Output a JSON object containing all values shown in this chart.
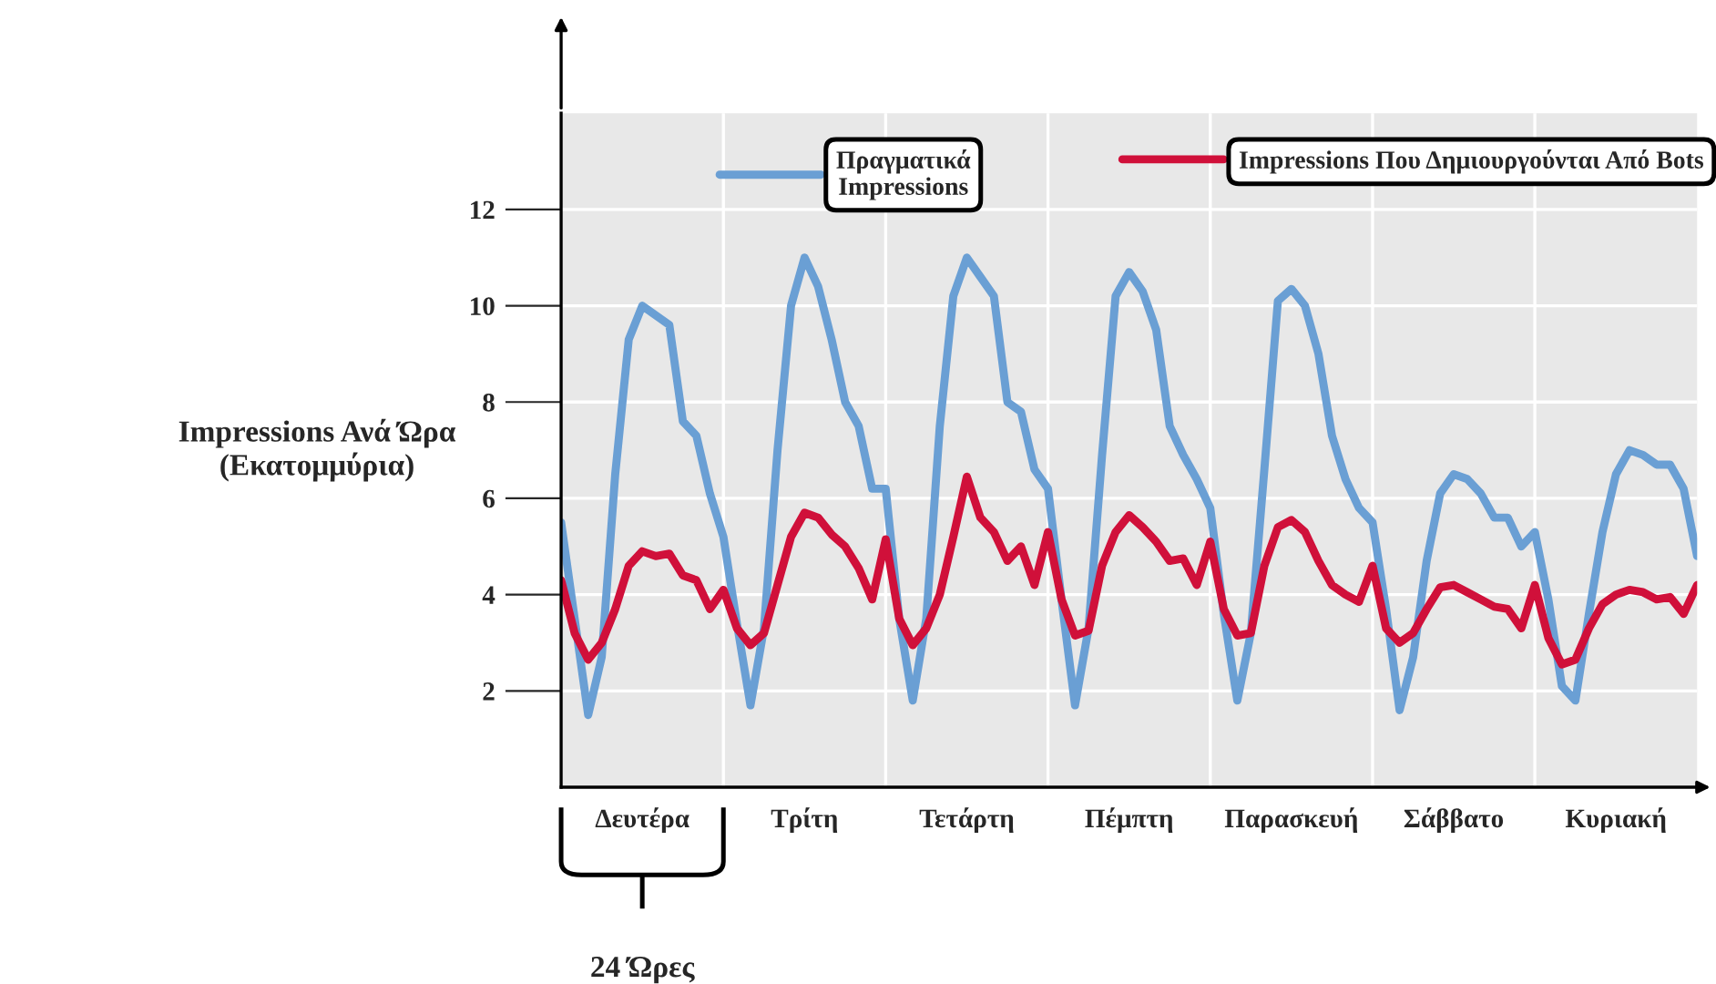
{
  "chart_data": {
    "type": "line",
    "ylabel": "Impressions Ανά Ώρα\n(Εκατομμύρια)",
    "ylim": [
      0,
      14
    ],
    "categories": [
      null,
      null,
      null,
      null,
      null,
      null,
      "Δευτέρα",
      null,
      null,
      null,
      null,
      null,
      null,
      null,
      null,
      null,
      null,
      null,
      "Τρίτη",
      null,
      null,
      null,
      null,
      null,
      null,
      null,
      null,
      null,
      null,
      null,
      "Τετάρτη",
      null,
      null,
      null,
      null,
      null,
      null,
      null,
      null,
      null,
      null,
      null,
      "Πέμπτη",
      null,
      null,
      null,
      null,
      null,
      null,
      null,
      null,
      null,
      null,
      null,
      "Παρασκευή",
      null,
      null,
      null,
      null,
      null,
      null,
      null,
      null,
      null,
      null,
      null,
      "Σάββατο",
      null,
      null,
      null,
      null,
      null,
      null,
      null,
      null,
      null,
      null,
      null,
      "Κυριακή",
      null,
      null,
      null,
      null,
      null,
      null
    ],
    "yticks": [
      2,
      4,
      6,
      8,
      10,
      12
    ],
    "grid": true,
    "legend": "top",
    "marker": "none",
    "line_style": "solid",
    "annotations": [
      "24 Ώρες"
    ],
    "series": [
      {
        "name": "Πραγματικά Impressions",
        "color": "#6a9fd4",
        "values": [
          5.5,
          3.5,
          1.5,
          2.7,
          6.5,
          9.3,
          10.0,
          9.8,
          9.6,
          7.6,
          7.3,
          6.1,
          5.2,
          3.4,
          1.7,
          3.3,
          7.0,
          10.0,
          11.0,
          10.4,
          9.3,
          8.0,
          7.5,
          6.2,
          6.2,
          3.5,
          1.8,
          3.5,
          7.5,
          10.2,
          11.0,
          10.6,
          10.2,
          8.0,
          7.8,
          6.6,
          6.2,
          3.9,
          1.7,
          3.3,
          6.9,
          10.2,
          10.7,
          10.3,
          9.5,
          7.5,
          6.9,
          6.4,
          5.8,
          3.6,
          1.8,
          3.2,
          6.6,
          10.1,
          10.35,
          10.0,
          9.0,
          7.3,
          6.4,
          5.8,
          5.5,
          3.7,
          1.6,
          2.7,
          4.7,
          6.1,
          6.5,
          6.4,
          6.1,
          5.6,
          5.6,
          5.0,
          5.3,
          3.9,
          2.1,
          1.8,
          3.6,
          5.3,
          6.5,
          7.0,
          6.9,
          6.7,
          6.7,
          6.2,
          4.8
        ]
      },
      {
        "name": "Impressions Που Δημιουργούνται Από Bots",
        "color": "#d0103a",
        "values": [
          4.3,
          3.2,
          2.65,
          3.0,
          3.7,
          4.6,
          4.9,
          4.8,
          4.85,
          4.4,
          4.3,
          3.7,
          4.1,
          3.3,
          2.95,
          3.2,
          4.2,
          5.2,
          5.7,
          5.6,
          5.25,
          5.0,
          4.55,
          3.9,
          5.15,
          3.5,
          2.95,
          3.3,
          4.0,
          5.2,
          6.45,
          5.6,
          5.3,
          4.7,
          5.0,
          4.2,
          5.3,
          3.9,
          3.15,
          3.25,
          4.6,
          5.3,
          5.65,
          5.4,
          5.1,
          4.7,
          4.75,
          4.2,
          5.1,
          3.7,
          3.15,
          3.2,
          4.6,
          5.4,
          5.55,
          5.3,
          4.7,
          4.2,
          4.0,
          3.85,
          4.6,
          3.3,
          3.0,
          3.2,
          3.7,
          4.15,
          4.2,
          4.05,
          3.9,
          3.75,
          3.7,
          3.3,
          4.2,
          3.1,
          2.55,
          2.65,
          3.3,
          3.8,
          4.0,
          4.1,
          4.05,
          3.9,
          3.95,
          3.6,
          4.2
        ]
      }
    ]
  }
}
